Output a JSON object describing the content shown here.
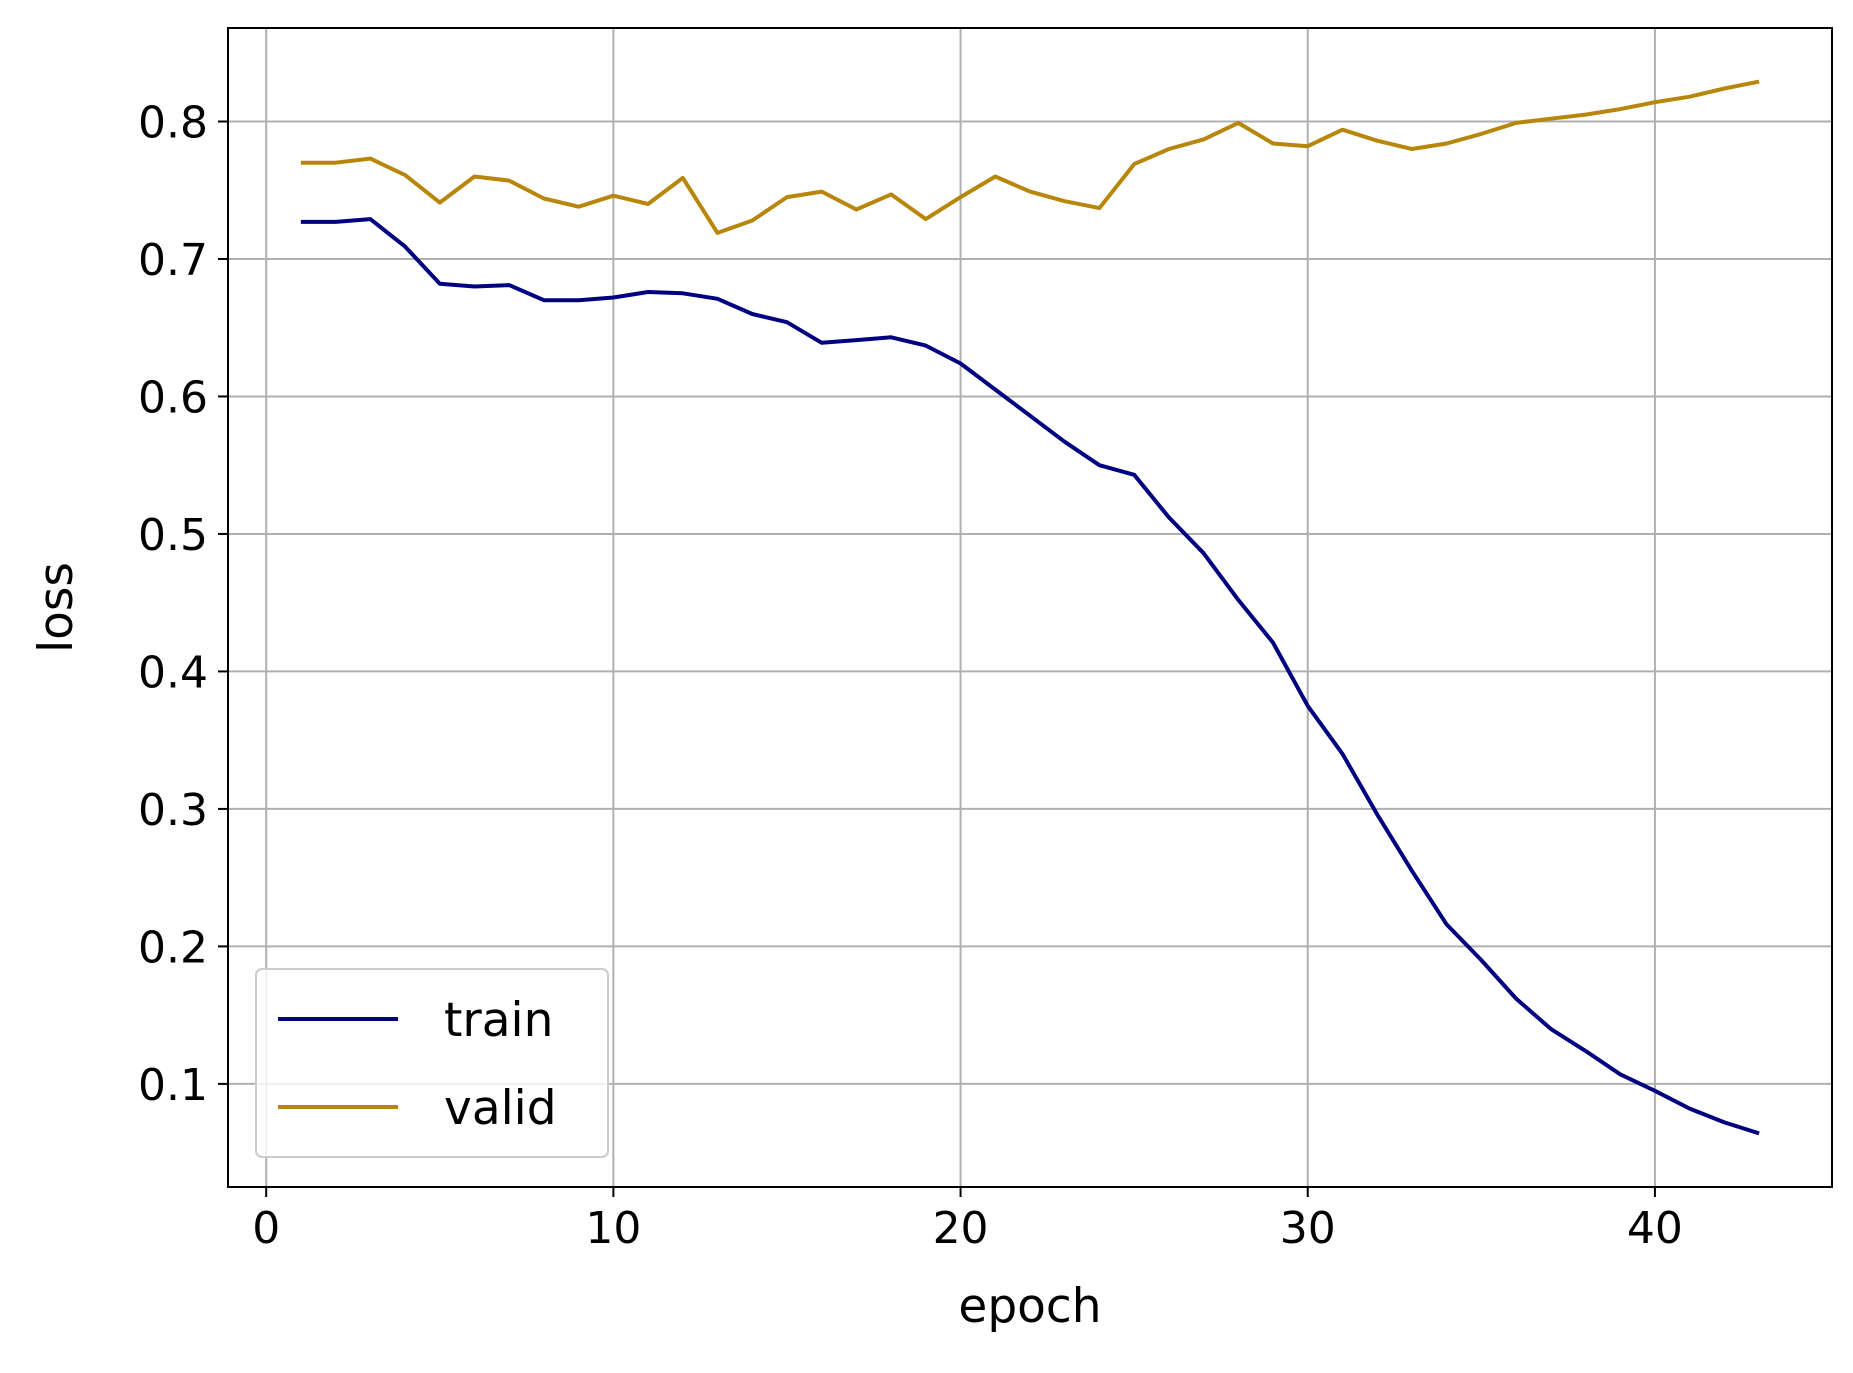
{
  "chart_data": {
    "type": "line",
    "title": "",
    "xlabel": "epoch",
    "ylabel": "loss",
    "xlim": [
      -1.1,
      45.1
    ],
    "ylim": [
      0.025,
      0.868
    ],
    "xticks": [
      0,
      10,
      20,
      30,
      40
    ],
    "yticks": [
      0.1,
      0.2,
      0.3,
      0.4,
      0.5,
      0.6,
      0.7,
      0.8
    ],
    "x_tick_labels": [
      "0",
      "10",
      "20",
      "30",
      "40"
    ],
    "y_tick_labels": [
      "0.1",
      "0.2",
      "0.3",
      "0.4",
      "0.5",
      "0.6",
      "0.7",
      "0.8"
    ],
    "grid": true,
    "legend_position": "lower-left",
    "x": [
      1,
      2,
      3,
      4,
      5,
      6,
      7,
      8,
      9,
      10,
      11,
      12,
      13,
      14,
      15,
      16,
      17,
      18,
      19,
      20,
      21,
      22,
      23,
      24,
      25,
      26,
      27,
      28,
      29,
      30,
      31,
      32,
      33,
      34,
      35,
      36,
      37,
      38,
      39,
      40,
      41,
      42,
      43
    ],
    "series": [
      {
        "name": "train",
        "color": "#000080",
        "values": [
          0.727,
          0.727,
          0.729,
          0.709,
          0.682,
          0.68,
          0.681,
          0.67,
          0.67,
          0.672,
          0.676,
          0.675,
          0.671,
          0.66,
          0.654,
          0.639,
          0.641,
          0.643,
          0.637,
          0.624,
          0.605,
          0.586,
          0.567,
          0.55,
          0.543,
          0.512,
          0.486,
          0.452,
          0.421,
          0.375,
          0.34,
          0.296,
          0.255,
          0.216,
          0.19,
          0.162,
          0.14,
          0.124,
          0.107,
          0.095,
          0.082,
          0.072,
          0.064
        ]
      },
      {
        "name": "valid",
        "color": "#b8860b",
        "values": [
          0.77,
          0.77,
          0.773,
          0.761,
          0.741,
          0.76,
          0.757,
          0.744,
          0.738,
          0.746,
          0.74,
          0.759,
          0.719,
          0.728,
          0.745,
          0.749,
          0.736,
          0.747,
          0.729,
          0.745,
          0.76,
          0.749,
          0.742,
          0.737,
          0.769,
          0.78,
          0.787,
          0.799,
          0.784,
          0.782,
          0.794,
          0.786,
          0.78,
          0.784,
          0.791,
          0.799,
          0.802,
          0.805,
          0.809,
          0.814,
          0.818,
          0.824,
          0.829
        ]
      }
    ]
  }
}
